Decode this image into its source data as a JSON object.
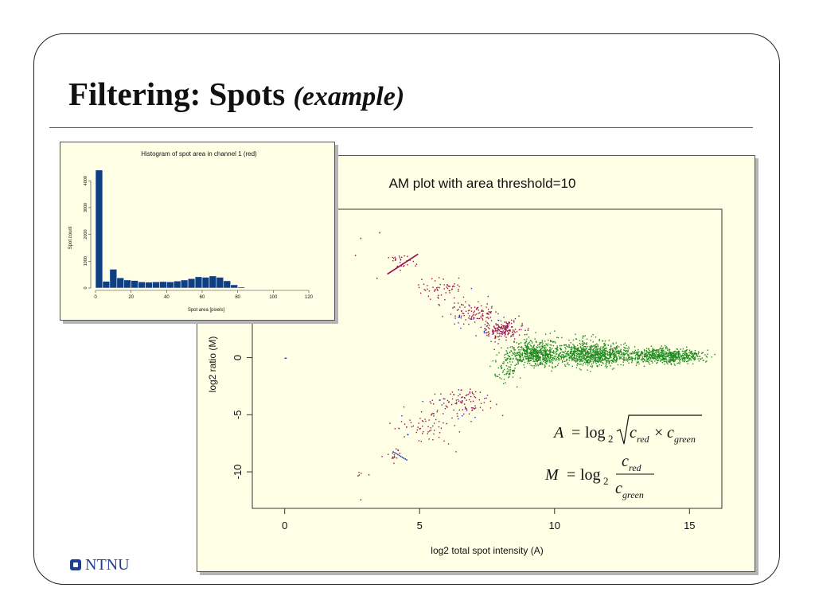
{
  "slide": {
    "title_main": "Filtering: Spots ",
    "title_em": "(example)",
    "logo_text": "NTNU"
  },
  "colors": {
    "logo": "#1f3f94",
    "panel_bg": "#ffffe6",
    "hist_bar": "#0e3f82",
    "point_red": "#99104f",
    "point_green": "#1e8a1e",
    "point_blue": "#2233cc"
  },
  "chart_data": [
    {
      "id": "histogram",
      "type": "bar",
      "title": "Histogram of spot area in channel 1 (red)",
      "xlabel": "Spot area [pixels]",
      "ylabel": "Spot count",
      "xlim": [
        0,
        120
      ],
      "ylim": [
        0,
        4600
      ],
      "xticks": [
        0,
        20,
        40,
        60,
        80,
        100,
        120
      ],
      "yticks": [
        0,
        1000,
        2000,
        3000,
        4000
      ],
      "bin_width": 4,
      "bins_start": [
        0,
        4,
        8,
        12,
        16,
        20,
        24,
        28,
        32,
        36,
        40,
        44,
        48,
        52,
        56,
        60,
        64,
        68,
        72,
        76,
        80,
        84,
        88,
        92
      ],
      "values": [
        4400,
        250,
        700,
        380,
        300,
        280,
        230,
        220,
        230,
        240,
        230,
        260,
        300,
        350,
        420,
        400,
        450,
        400,
        270,
        120,
        40,
        15,
        5,
        5
      ],
      "bar_color": "#0e3f82"
    },
    {
      "id": "am-plot",
      "type": "scatter",
      "title": "AM plot with area threshold=10",
      "xlabel": "log2 total spot intensity (A)",
      "ylabel": "log2 ratio (M)",
      "xlim": [
        -1.2,
        16.2
      ],
      "ylim": [
        -13.2,
        13
      ],
      "xticks": [
        0,
        5,
        10,
        15
      ],
      "yticks": [
        -10,
        -5,
        0
      ],
      "formula_A": {
        "lhs": "A",
        "op": "=",
        "log": "log",
        "base": "2",
        "r1": "c",
        "r1_sub": "red",
        "times": "×",
        "r2": "c",
        "r2_sub": "green"
      },
      "formula_M": {
        "lhs": "M",
        "op": "=",
        "log": "log",
        "base": "2",
        "num": "c",
        "num_sub": "red",
        "den": "c",
        "den_sub": "green"
      },
      "series": [
        {
          "color": "#1e8a1e",
          "clouds": [
            [
              9.2,
              0.3,
              0.7,
              0.7,
              500
            ],
            [
              11.5,
              0.3,
              1.3,
              0.75,
              900
            ],
            [
              14.2,
              0.2,
              1.0,
              0.5,
              600
            ],
            [
              8.2,
              -0.8,
              0.35,
              1.1,
              80
            ],
            [
              10.0,
              1.2,
              1.4,
              0.9,
              120
            ]
          ]
        },
        {
          "color": "#99104f",
          "clouds": [
            [
              8.1,
              2.5,
              0.55,
              0.7,
              170
            ],
            [
              7.0,
              4.0,
              0.6,
              0.7,
              90
            ],
            [
              5.8,
              6.0,
              0.7,
              1.0,
              60
            ],
            [
              4.3,
              8.5,
              0.35,
              0.5,
              30
            ],
            [
              6.6,
              -3.8,
              0.8,
              1.0,
              90
            ],
            [
              5.2,
              -6.0,
              0.9,
              1.4,
              60
            ],
            [
              4.0,
              -8.5,
              0.3,
              0.5,
              15
            ],
            [
              2.8,
              -10.0,
              0.2,
              0.4,
              3
            ]
          ]
        },
        {
          "color": "#2233cc",
          "clouds": [
            [
              7.2,
              3.5,
              1.0,
              1.5,
              25
            ],
            [
              6.2,
              -4.5,
              1.2,
              1.8,
              20
            ],
            [
              8.2,
              2.0,
              0.6,
              1.0,
              12
            ]
          ]
        }
      ],
      "lines": [
        {
          "color": "#99104f",
          "from": [
            3.8,
            7.4
          ],
          "to": [
            4.9,
            9.1
          ],
          "n": 40
        },
        {
          "color": "#2233cc",
          "from": [
            4.0,
            -8.2
          ],
          "to": [
            4.5,
            -8.9
          ],
          "n": 10
        }
      ],
      "points": [
        [
          0.0,
          0.0
        ],
        [
          3.5,
          11.0
        ],
        [
          2.8,
          10.5
        ],
        [
          2.8,
          -12.4
        ],
        [
          2.7,
          -10.3
        ],
        [
          3.1,
          -10.2
        ],
        [
          2.6,
          9.0
        ],
        [
          3.4,
          7.0
        ]
      ]
    }
  ]
}
